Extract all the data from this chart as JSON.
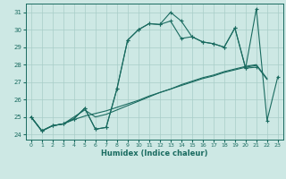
{
  "title": "",
  "xlabel": "Humidex (Indice chaleur)",
  "background_color": "#cde8e4",
  "grid_color": "#a8cdc8",
  "line_color": "#1a6b60",
  "xlim": [
    -0.5,
    23.5
  ],
  "ylim": [
    23.7,
    31.5
  ],
  "yticks": [
    24,
    25,
    26,
    27,
    28,
    29,
    30,
    31
  ],
  "xticks": [
    0,
    1,
    2,
    3,
    4,
    5,
    6,
    7,
    8,
    9,
    10,
    11,
    12,
    13,
    14,
    15,
    16,
    17,
    18,
    19,
    20,
    21,
    22,
    23
  ],
  "line1_x": [
    0,
    1,
    2,
    3,
    4,
    5,
    6,
    7,
    8,
    9,
    10,
    11,
    12,
    13,
    14,
    15,
    16,
    17,
    18,
    19,
    20,
    21
  ],
  "line1_y": [
    25.0,
    24.2,
    24.5,
    24.6,
    24.9,
    25.5,
    24.3,
    24.4,
    26.6,
    29.4,
    30.0,
    30.35,
    30.3,
    30.5,
    29.5,
    29.6,
    29.3,
    29.2,
    29.0,
    30.1,
    27.8,
    27.85
  ],
  "line2_x": [
    0,
    1,
    2,
    3,
    4,
    5,
    6,
    7,
    8,
    9,
    10,
    11,
    12,
    13,
    14,
    15,
    16,
    17,
    18,
    19,
    20,
    21,
    22,
    23
  ],
  "line2_y": [
    25.0,
    24.2,
    24.5,
    24.6,
    24.9,
    25.5,
    24.3,
    24.4,
    26.6,
    29.4,
    30.0,
    30.35,
    30.3,
    31.0,
    30.5,
    29.6,
    29.3,
    29.2,
    29.0,
    30.1,
    27.8,
    31.2,
    24.8,
    27.3
  ],
  "line3_x": [
    0,
    1,
    2,
    3,
    4,
    5,
    6,
    7,
    8,
    9,
    10,
    11,
    12,
    13,
    14,
    15,
    16,
    17,
    18,
    19,
    20,
    21,
    22,
    23
  ],
  "line3_y": [
    25.0,
    24.2,
    24.5,
    24.6,
    25.0,
    25.4,
    25.0,
    25.15,
    25.4,
    25.65,
    25.9,
    26.15,
    26.4,
    26.6,
    26.85,
    27.05,
    27.25,
    27.4,
    27.6,
    27.75,
    27.9,
    28.0,
    27.2,
    null
  ],
  "line4_x": [
    0,
    1,
    2,
    3,
    4,
    5,
    6,
    7,
    8,
    9,
    10,
    11,
    12,
    13,
    14,
    15,
    16,
    17,
    18,
    19,
    20,
    21,
    22,
    23
  ],
  "line4_y": [
    25.0,
    24.2,
    24.5,
    24.6,
    24.85,
    25.05,
    25.2,
    25.35,
    25.55,
    25.75,
    25.95,
    26.2,
    26.4,
    26.6,
    26.8,
    27.0,
    27.2,
    27.35,
    27.55,
    27.7,
    27.85,
    27.95,
    27.15,
    null
  ]
}
